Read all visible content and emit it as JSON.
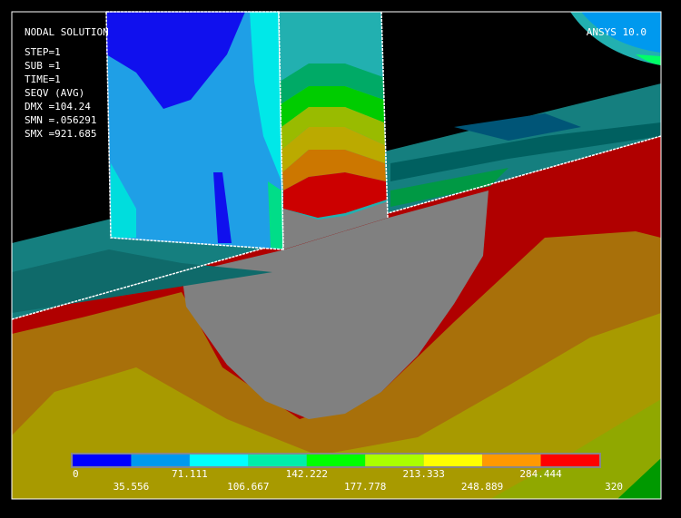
{
  "header": {
    "title": "NODAL SOLUTION",
    "product": "ANSYS 10.0",
    "lines": [
      "STEP=1",
      "SUB =1",
      "TIME=1",
      "SEQV     (AVG)",
      "DMX =104.24",
      "SMN =.056291",
      "SMX =921.685"
    ]
  },
  "legend": {
    "colors": [
      "#0000ff",
      "#0099ee",
      "#00ffff",
      "#00eeaa",
      "#00ff00",
      "#aaff00",
      "#ffff00",
      "#ff9900",
      "#ff0000"
    ],
    "labels": [
      "0",
      "35.556",
      "71.111",
      "106.667",
      "142.222",
      "177.778",
      "213.333",
      "248.889",
      "284.444",
      "320"
    ]
  }
}
